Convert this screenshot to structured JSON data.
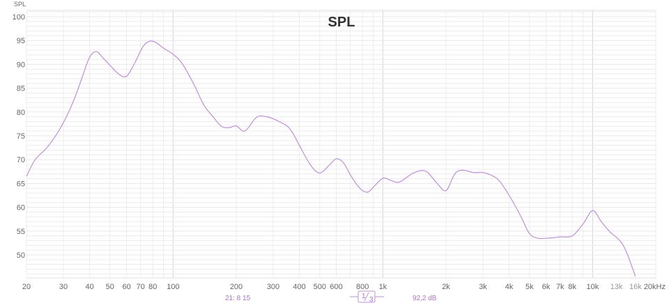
{
  "chart_data": {
    "type": "line",
    "title": "SPL",
    "ylabel": "SPL",
    "xlabel": "",
    "x_scale": "log",
    "xlim": [
      20,
      20000
    ],
    "ylim": [
      45,
      101
    ],
    "grid": true,
    "y_ticks": [
      100,
      95,
      90,
      85,
      80,
      75,
      70,
      65,
      60,
      55,
      50
    ],
    "x_ticks": [
      {
        "value": 20,
        "label": "20",
        "dim": false
      },
      {
        "value": 30,
        "label": "30",
        "dim": false
      },
      {
        "value": 40,
        "label": "40",
        "dim": false
      },
      {
        "value": 50,
        "label": "50",
        "dim": false
      },
      {
        "value": 60,
        "label": "60",
        "dim": false
      },
      {
        "value": 70,
        "label": "70",
        "dim": false
      },
      {
        "value": 80,
        "label": "80",
        "dim": false
      },
      {
        "value": 100,
        "label": "100",
        "dim": false
      },
      {
        "value": 200,
        "label": "200",
        "dim": false
      },
      {
        "value": 300,
        "label": "300",
        "dim": false
      },
      {
        "value": 400,
        "label": "400",
        "dim": false
      },
      {
        "value": 500,
        "label": "500",
        "dim": false
      },
      {
        "value": 600,
        "label": "600",
        "dim": false
      },
      {
        "value": 800,
        "label": "800",
        "dim": false
      },
      {
        "value": 1000,
        "label": "1k",
        "dim": false
      },
      {
        "value": 2000,
        "label": "2k",
        "dim": false
      },
      {
        "value": 3000,
        "label": "3k",
        "dim": false
      },
      {
        "value": 4000,
        "label": "4k",
        "dim": false
      },
      {
        "value": 5000,
        "label": "5k",
        "dim": false
      },
      {
        "value": 6000,
        "label": "6k",
        "dim": false
      },
      {
        "value": 7000,
        "label": "7k",
        "dim": false
      },
      {
        "value": 8000,
        "label": "8k",
        "dim": false
      },
      {
        "value": 10000,
        "label": "10k",
        "dim": false
      },
      {
        "value": 13000,
        "label": "13k",
        "dim": true
      },
      {
        "value": 16000,
        "label": "16k",
        "dim": true
      },
      {
        "value": 20000,
        "label": "20kHz",
        "dim": false
      }
    ],
    "series": [
      {
        "color": "#c38be6",
        "x": [
          20,
          22,
          25,
          28,
          31,
          34,
          37,
          40,
          43,
          46,
          50,
          55,
          60,
          66,
          72,
          78,
          84,
          90,
          100,
          110,
          125,
          140,
          155,
          170,
          185,
          200,
          220,
          250,
          280,
          320,
          360,
          400,
          450,
          500,
          560,
          600,
          650,
          700,
          750,
          800,
          850,
          900,
          1000,
          1100,
          1200,
          1400,
          1600,
          1800,
          2000,
          2200,
          2400,
          2700,
          3000,
          3300,
          3600,
          4000,
          4500,
          5000,
          5500,
          6000,
          6500,
          7000,
          8000,
          9000,
          10000,
          11000,
          12000,
          14000,
          16000
        ],
        "y": [
          66.5,
          70,
          72.5,
          75.5,
          79,
          83,
          87.5,
          91.5,
          92.7,
          91.5,
          89.8,
          88,
          87.5,
          90.5,
          93.8,
          94.9,
          94.4,
          93.4,
          92.1,
          90.3,
          86,
          81.5,
          79,
          77,
          76.7,
          77.1,
          76,
          78.9,
          79,
          78,
          76.5,
          73,
          69,
          67.2,
          69,
          70.2,
          69.3,
          66.8,
          64.8,
          63.5,
          63.2,
          64.2,
          66.1,
          65.6,
          65.3,
          67.2,
          67.6,
          65.2,
          63.5,
          67,
          67.8,
          67.3,
          67.3,
          66.7,
          65.5,
          62.5,
          58.5,
          54.5,
          53.5,
          53.5,
          53.6,
          53.8,
          54,
          56.5,
          59.3,
          57,
          55,
          52,
          45.5
        ]
      }
    ],
    "footer": {
      "cursor": "21: 8 15",
      "smoothing": "1/3",
      "smoothing_num": "1",
      "smoothing_den": "3",
      "level": "92,2 dB"
    }
  }
}
